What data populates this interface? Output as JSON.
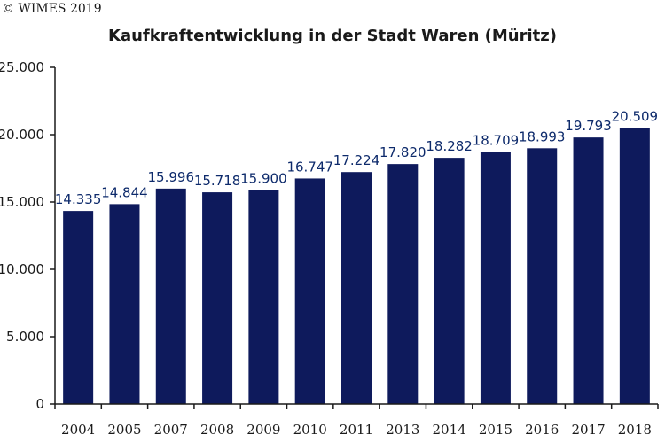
{
  "copyright": "© WIMES 2019",
  "colors": {
    "bar": "#0e1a5c",
    "label": "#0d2a6b",
    "axis": "#1a1a1a"
  },
  "chart_data": {
    "type": "bar",
    "title": "Kaufkraftentwicklung in der Stadt Waren (Müritz)",
    "xlabel": "",
    "ylabel": "",
    "ylim": [
      0,
      25000
    ],
    "yticks": [
      0,
      5000,
      10000,
      15000,
      20000,
      25000
    ],
    "ytick_labels": [
      "0",
      "5.000",
      "10.000",
      "15.000",
      "20.000",
      "25.000"
    ],
    "categories": [
      "2004",
      "2005",
      "2007",
      "2008",
      "2009",
      "2010",
      "2011",
      "2013",
      "2014",
      "2015",
      "2016",
      "2017",
      "2018"
    ],
    "values": [
      14335,
      14844,
      15996,
      15718,
      15900,
      16747,
      17224,
      17820,
      18282,
      18709,
      18993,
      19793,
      20509
    ],
    "data_labels": [
      "14.335",
      "14.844",
      "15.996",
      "15.718",
      "15.900",
      "16.747",
      "17.224",
      "17.820",
      "18.282",
      "18.709",
      "18.993",
      "19.793",
      "20.509"
    ],
    "grid": false,
    "legend": "none"
  }
}
